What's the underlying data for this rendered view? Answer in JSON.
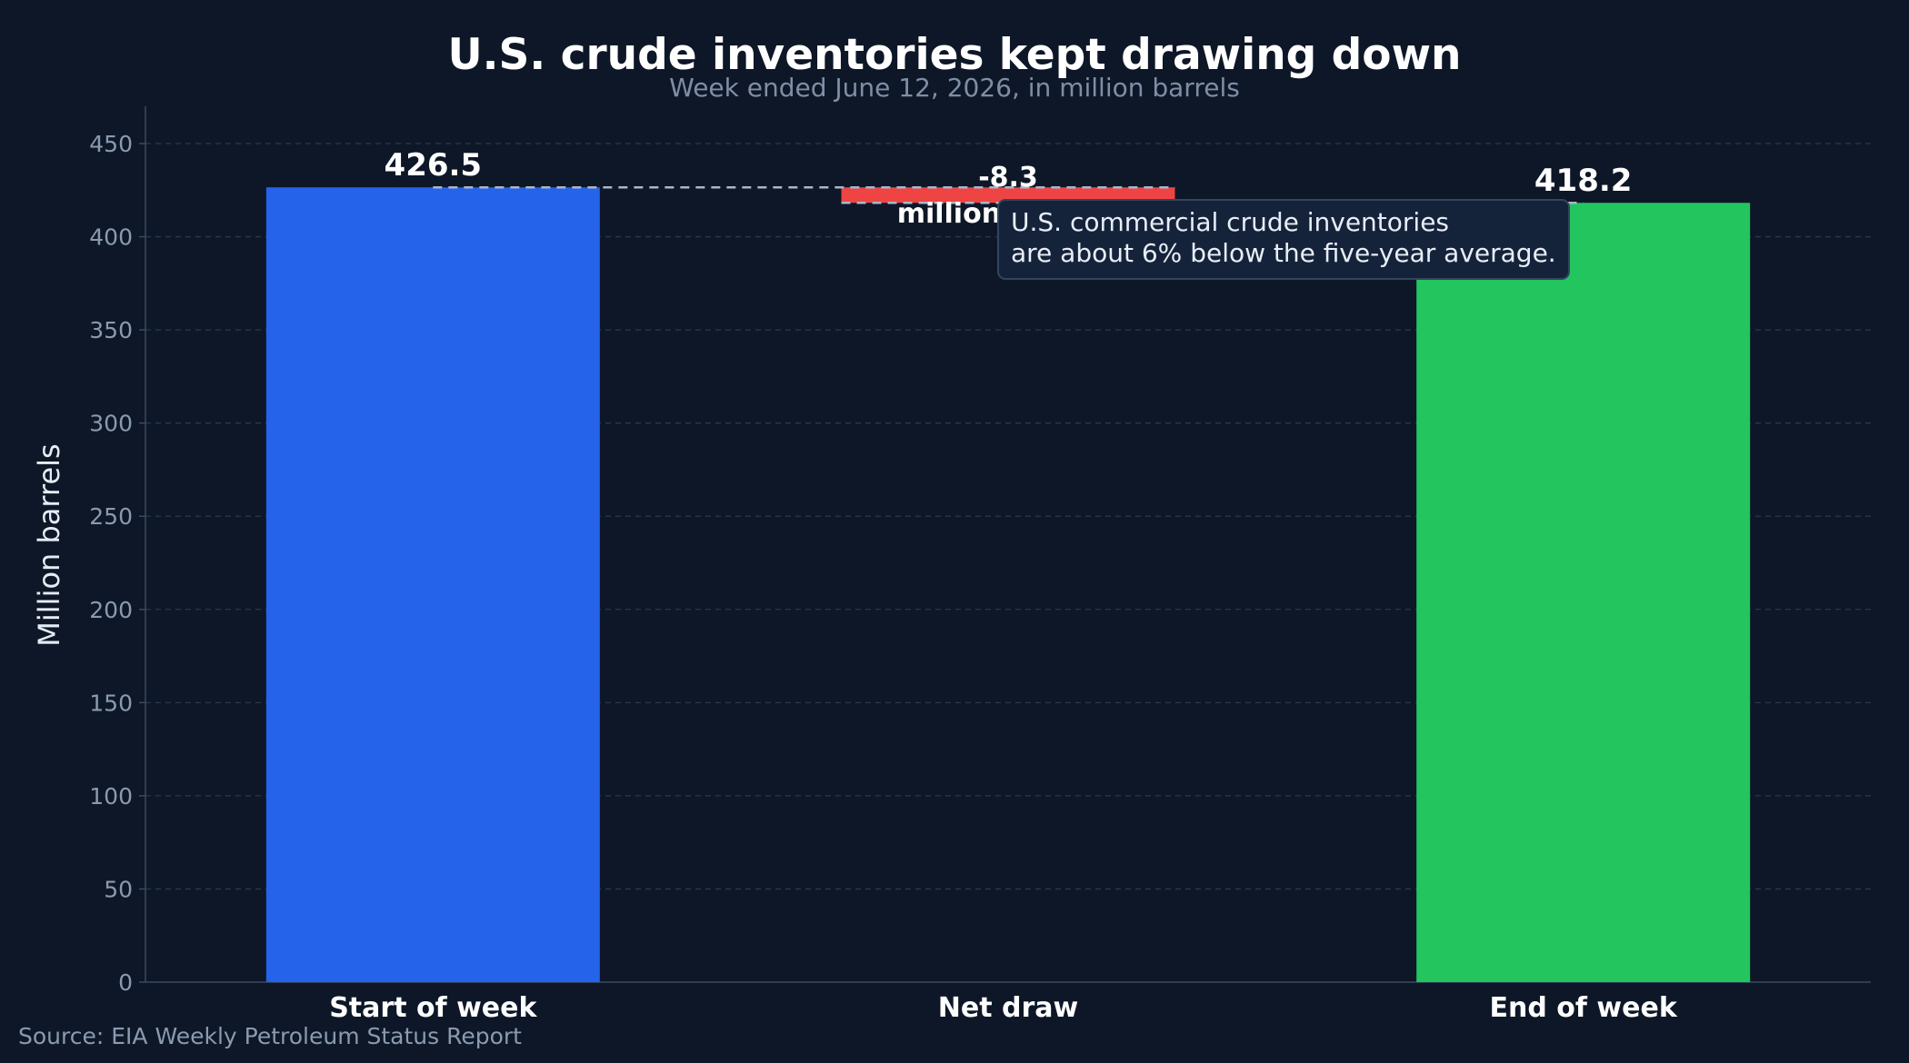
{
  "colors": {
    "background": "#0d1727",
    "start_bar": "#2563eb",
    "draw_bar": "#ef4444",
    "end_bar": "#22c55e",
    "grid": "#2a384d",
    "axis": "#3a4a60",
    "tick_text": "#8a9ab0",
    "title_text": "#ffffff",
    "subtitle_text": "#7f8ea6",
    "connector": "#aab6c8"
  },
  "chart_data": {
    "type": "bar",
    "subtype": "waterfall",
    "title": "U.S. crude inventories kept drawing down",
    "subtitle": "Week ended June 12, 2026, in million barrels",
    "ylabel": "Million barrels",
    "xlabel": "",
    "categories": [
      "Start of week",
      "Net draw",
      "End of week"
    ],
    "values": [
      426.5,
      -8.3,
      418.2
    ],
    "data_labels": [
      "426.5",
      "-8.3",
      "418.2"
    ],
    "draw_sublabel": "million barrels",
    "ylim": [
      0,
      470
    ],
    "yticks": [
      0,
      50,
      100,
      150,
      200,
      250,
      300,
      350,
      400,
      450
    ],
    "grid": true,
    "annotation": {
      "lines": [
        "U.S. commercial crude inventories",
        "are about 6% below the five-year average."
      ]
    },
    "source": "Source: EIA Weekly Petroleum Status Report"
  }
}
